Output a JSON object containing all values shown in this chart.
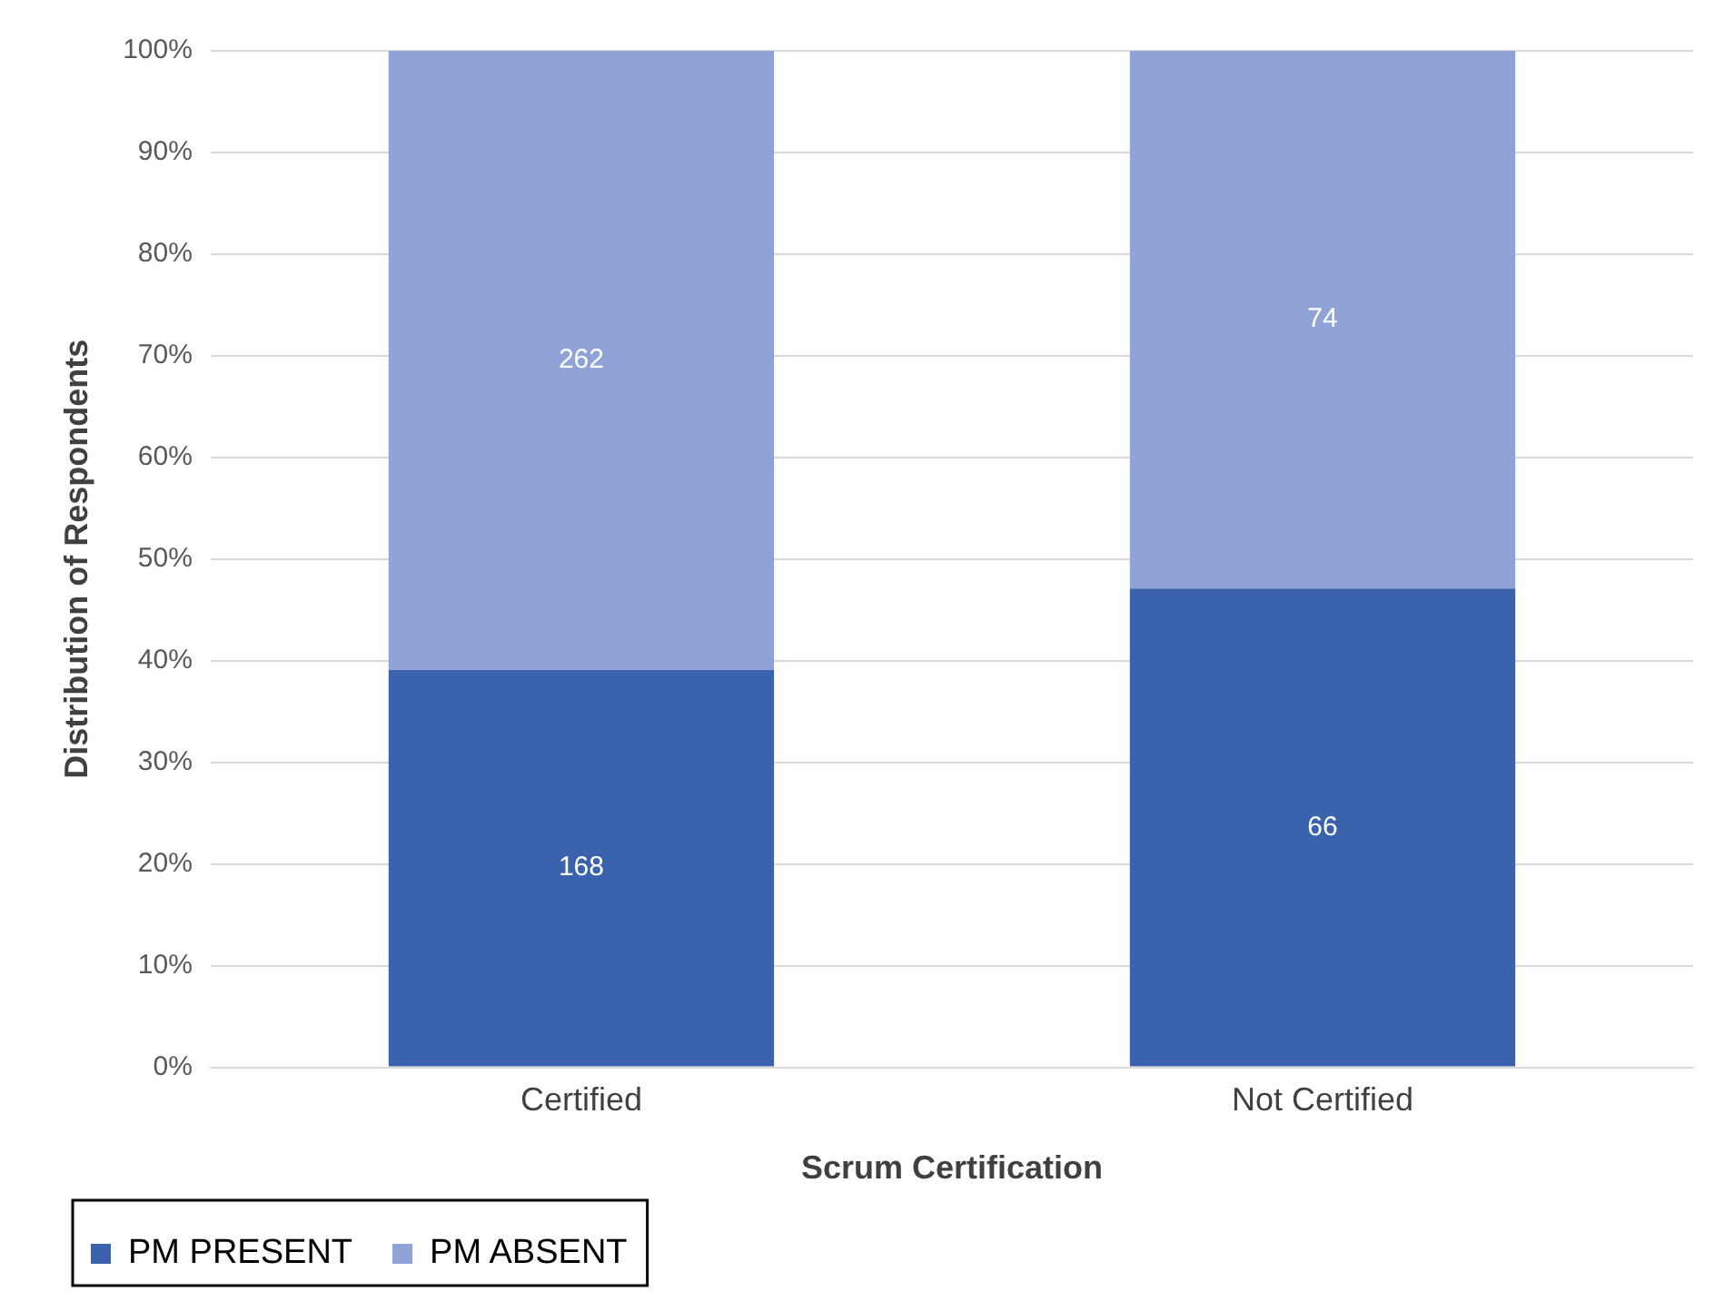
{
  "chart_data": {
    "type": "bar",
    "stacked": true,
    "xlabel": "Scrum Certification",
    "ylabel": "Distribution of Respondents",
    "categories": [
      "Certified",
      "Not Certified"
    ],
    "series": [
      {
        "name": "PM PRESENT",
        "color": "#3a62ad",
        "values": [
          39.1,
          47.1
        ]
      },
      {
        "name": "PM ABSENT",
        "color": "#8fa3d6",
        "values": [
          60.9,
          52.9
        ]
      }
    ],
    "annotations": [
      "168",
      "66",
      "262",
      "74"
    ],
    "ylim": [
      0,
      100
    ],
    "yticks": [
      {
        "value": 0,
        "label": "0%"
      },
      {
        "value": 10,
        "label": "10%"
      },
      {
        "value": 20,
        "label": "20%"
      },
      {
        "value": 30,
        "label": "30%"
      },
      {
        "value": 40,
        "label": "40%"
      },
      {
        "value": 50,
        "label": "50%"
      },
      {
        "value": 60,
        "label": "60%"
      },
      {
        "value": 70,
        "label": "70%"
      },
      {
        "value": 80,
        "label": "80%"
      },
      {
        "value": 90,
        "label": "90%"
      },
      {
        "value": 100,
        "label": "100%"
      }
    ],
    "grid": "y",
    "legend": "bottom left"
  }
}
